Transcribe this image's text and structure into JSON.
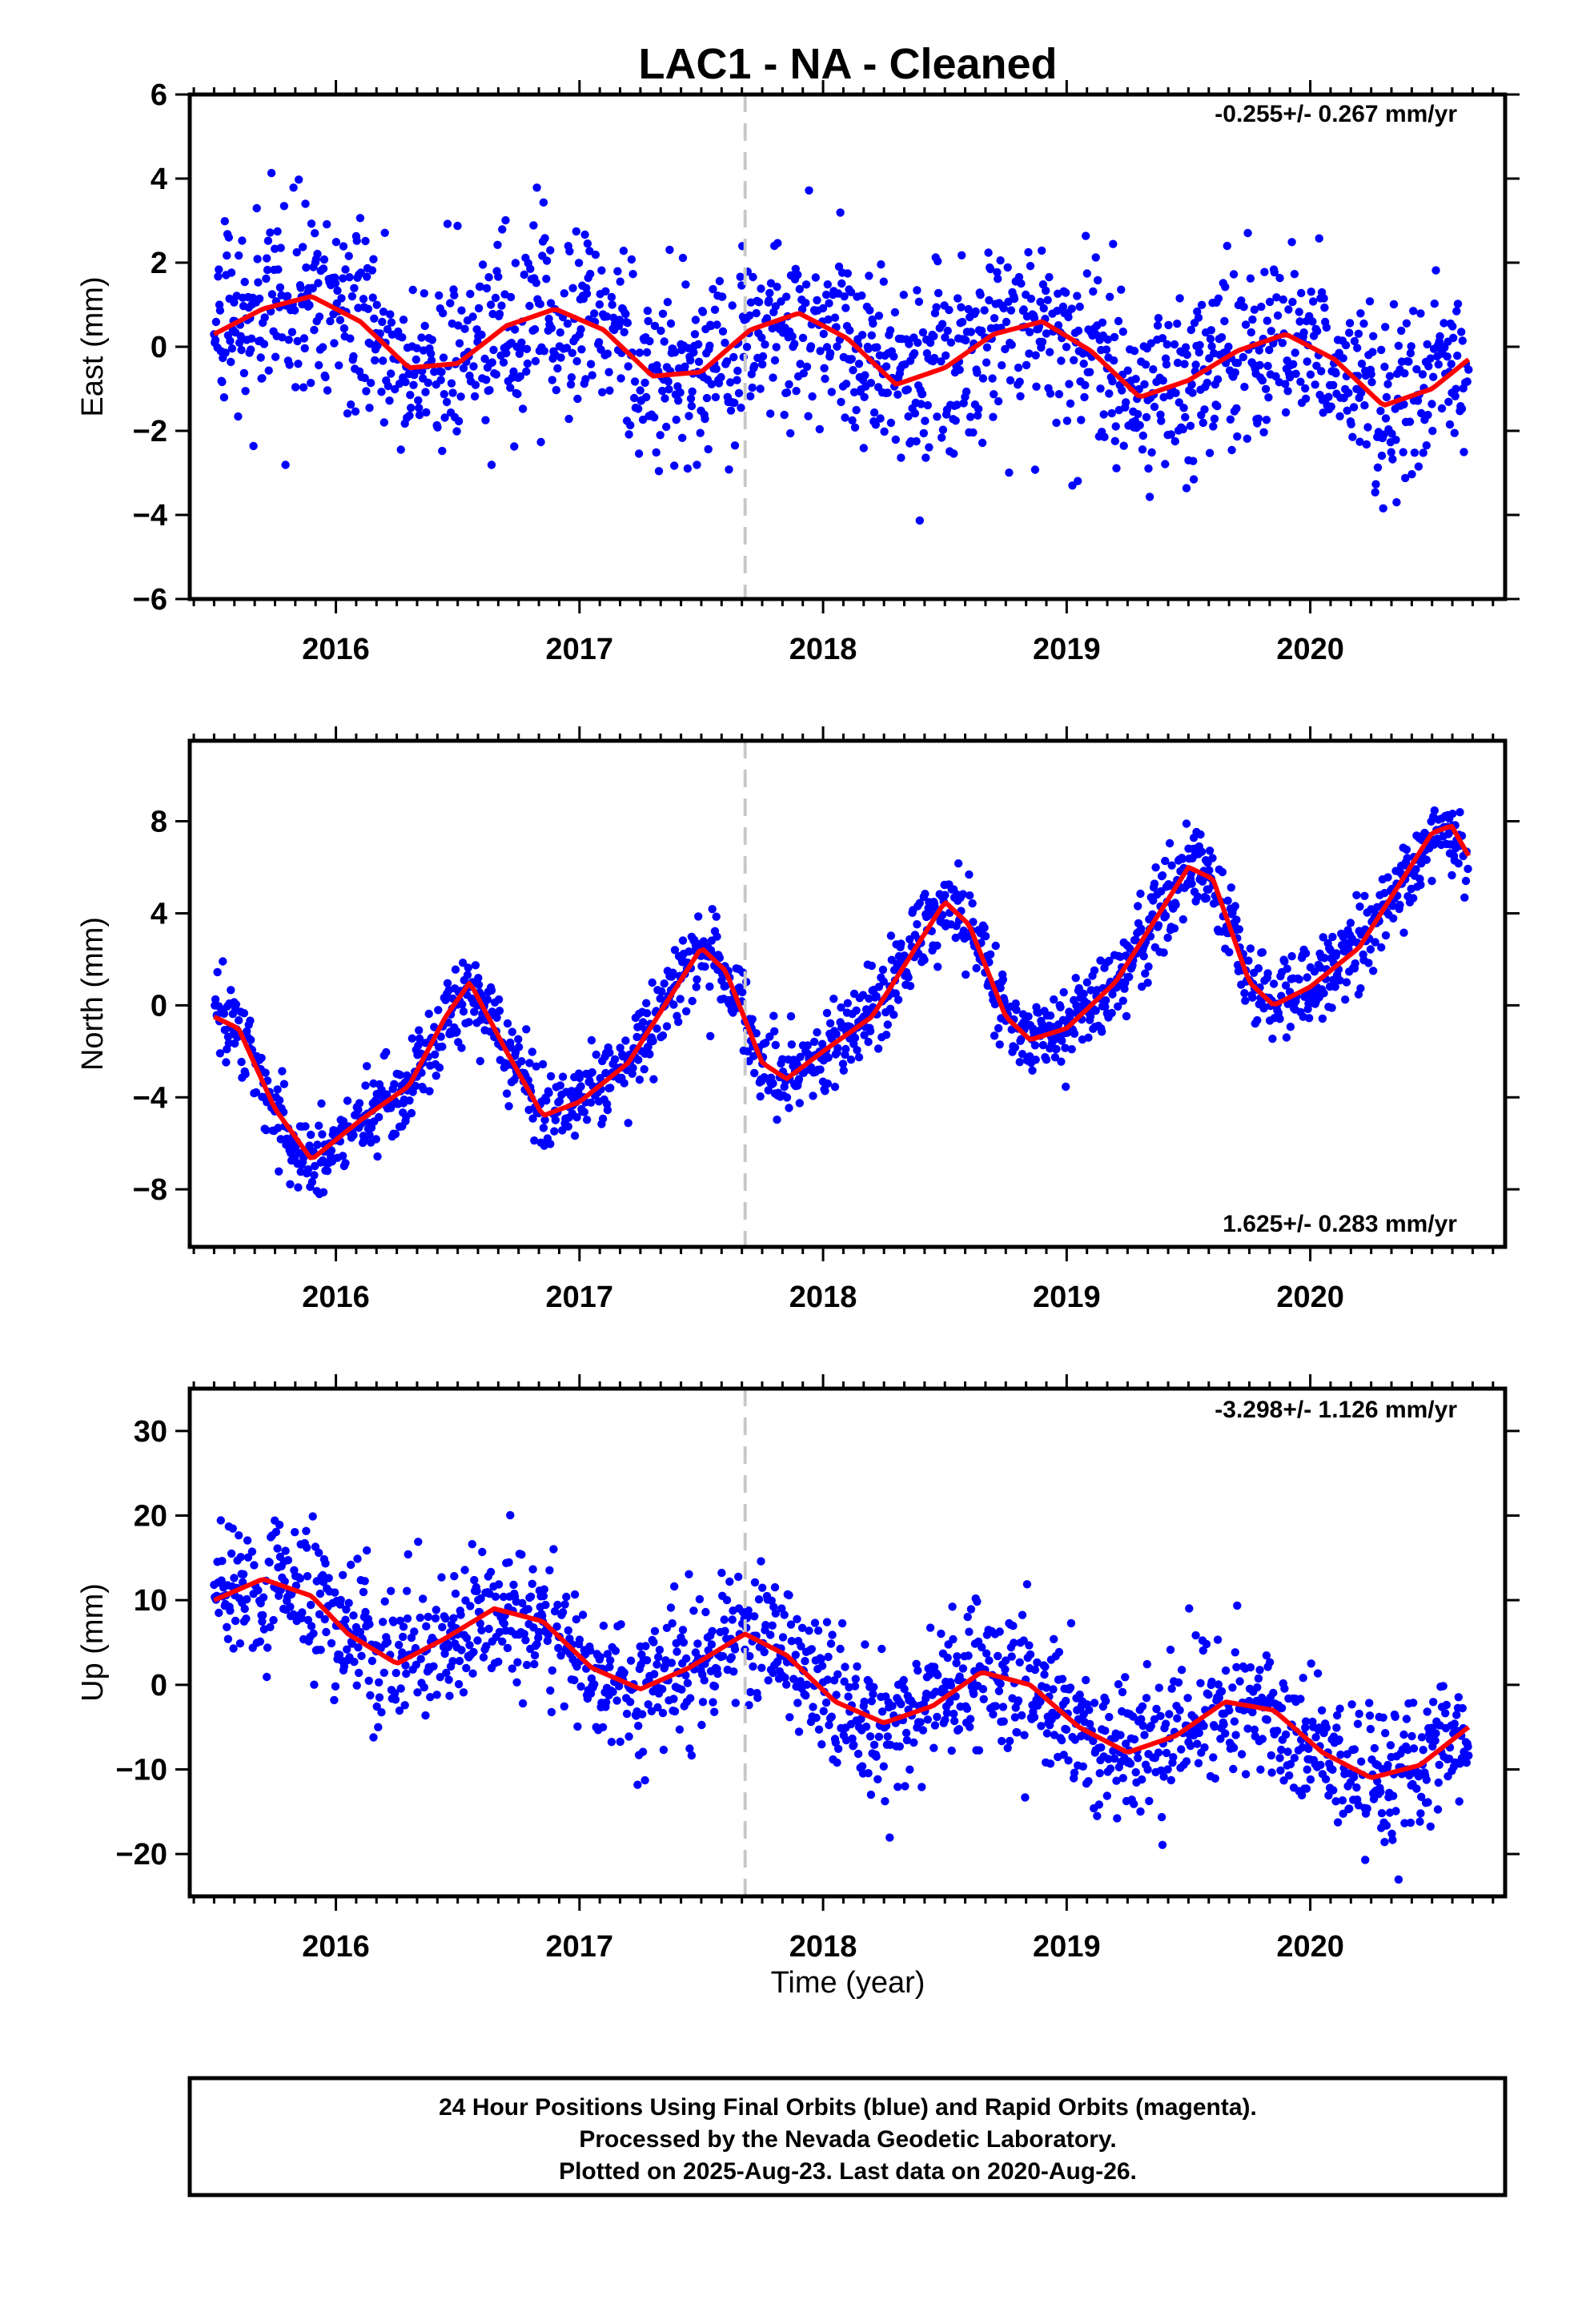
{
  "title": "LAC1  - NA - Cleaned",
  "xlabel": "Time (year)",
  "footer": {
    "line1": "24 Hour Positions Using Final Orbits (blue) and Rapid Orbits (magenta).",
    "line2": "Processed by the Nevada Geodetic Laboratory.",
    "line3": "Plotted on 2025-Aug-23. Last data on 2020-Aug-26."
  },
  "colors": {
    "points": "#0000ff",
    "model": "#ff0000",
    "event_line": "#c8c8c8",
    "frame": "#000000"
  },
  "chart_data": [
    {
      "type": "scatter",
      "ylabel": "East (mm)",
      "rate_label": "-0.255+/- 0.267 mm/yr",
      "xlim": [
        2015.4,
        2020.8
      ],
      "ylim": [
        -6,
        6
      ],
      "xticks": [
        2016,
        2017,
        2018,
        2019,
        2020
      ],
      "yticks": [
        -6,
        -4,
        -2,
        0,
        2,
        4,
        6
      ],
      "ytick_labels": [
        "−6",
        "−4",
        "−2",
        "0",
        "2",
        "4",
        "6"
      ],
      "event_line_x": 2017.68,
      "data_start": 2015.5,
      "data_end": 2020.65,
      "model": {
        "x": [
          2015.5,
          2015.7,
          2015.9,
          2016.1,
          2016.3,
          2016.5,
          2016.7,
          2016.9,
          2017.1,
          2017.3,
          2017.5,
          2017.7,
          2017.9,
          2018.1,
          2018.3,
          2018.5,
          2018.7,
          2018.9,
          2019.1,
          2019.3,
          2019.5,
          2019.7,
          2019.9,
          2020.1,
          2020.3,
          2020.5,
          2020.65
        ],
        "y": [
          0.3,
          0.9,
          1.2,
          0.6,
          -0.5,
          -0.4,
          0.5,
          0.9,
          0.4,
          -0.7,
          -0.6,
          0.4,
          0.8,
          0.2,
          -0.9,
          -0.5,
          0.3,
          0.6,
          -0.1,
          -1.2,
          -0.8,
          -0.1,
          0.3,
          -0.3,
          -1.4,
          -1.0,
          -0.3
        ]
      },
      "scatter_sigma": 1.1
    },
    {
      "type": "scatter",
      "ylabel": "North (mm)",
      "rate_label": "1.625+/- 0.283 mm/yr",
      "xlim": [
        2015.4,
        2020.8
      ],
      "ylim": [
        -10.5,
        11.5
      ],
      "xticks": [
        2016,
        2017,
        2018,
        2019,
        2020
      ],
      "yticks": [
        -8,
        -4,
        0,
        4,
        8
      ],
      "ytick_labels": [
        "−8",
        "−4",
        "0",
        "4",
        "8"
      ],
      "event_line_x": 2017.68,
      "data_start": 2015.5,
      "data_end": 2020.65,
      "model": {
        "x": [
          2015.5,
          2015.6,
          2015.75,
          2015.9,
          2016.1,
          2016.3,
          2016.45,
          2016.55,
          2016.7,
          2016.85,
          2017.0,
          2017.2,
          2017.35,
          2017.5,
          2017.6,
          2017.75,
          2017.85,
          2018.0,
          2018.2,
          2018.35,
          2018.5,
          2018.6,
          2018.75,
          2018.85,
          2019.0,
          2019.2,
          2019.35,
          2019.5,
          2019.6,
          2019.75,
          2019.85,
          2020.0,
          2020.2,
          2020.35,
          2020.5,
          2020.58,
          2020.65
        ],
        "y": [
          -0.5,
          -1.0,
          -4.5,
          -6.7,
          -5.0,
          -3.5,
          -0.5,
          1.0,
          -2.0,
          -4.8,
          -4.2,
          -2.5,
          0.0,
          2.5,
          1.5,
          -2.5,
          -3.2,
          -2.0,
          -0.5,
          2.0,
          4.5,
          3.5,
          -0.5,
          -1.5,
          -1.0,
          1.0,
          3.5,
          6.0,
          5.5,
          1.0,
          0.0,
          0.8,
          2.5,
          5.0,
          7.5,
          7.8,
          6.5
        ]
      },
      "scatter_sigma": 0.9
    },
    {
      "type": "scatter",
      "ylabel": "Up (mm)",
      "rate_label": "-3.298+/- 1.126 mm/yr",
      "xlim": [
        2015.4,
        2020.8
      ],
      "ylim": [
        -25,
        35
      ],
      "xticks": [
        2016,
        2017,
        2018,
        2019,
        2020
      ],
      "yticks": [
        -20,
        -10,
        0,
        10,
        20,
        30
      ],
      "ytick_labels": [
        "−20",
        "−10",
        "0",
        "10",
        "20",
        "30"
      ],
      "event_line_x": 2017.68,
      "data_start": 2015.5,
      "data_end": 2020.65,
      "model": {
        "x": [
          2015.5,
          2015.7,
          2015.9,
          2016.05,
          2016.25,
          2016.45,
          2016.65,
          2016.85,
          2017.05,
          2017.25,
          2017.45,
          2017.65,
          2017.68,
          2017.85,
          2018.05,
          2018.25,
          2018.45,
          2018.65,
          2018.85,
          2019.05,
          2019.25,
          2019.45,
          2019.65,
          2019.85,
          2020.05,
          2020.25,
          2020.45,
          2020.65
        ],
        "y": [
          10.0,
          12.5,
          10.5,
          6.0,
          2.5,
          5.5,
          9.0,
          7.5,
          2.0,
          -0.5,
          2.0,
          5.5,
          6.0,
          3.5,
          -2.0,
          -4.5,
          -2.5,
          1.5,
          0.0,
          -5.0,
          -8.0,
          -6.0,
          -2.0,
          -3.0,
          -8.0,
          -11.0,
          -9.5,
          -5.0
        ]
      },
      "scatter_sigma": 4.2
    }
  ]
}
